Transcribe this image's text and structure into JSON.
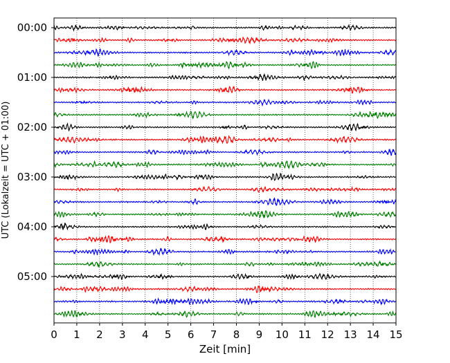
{
  "chart_data": {
    "type": "line",
    "title": "",
    "xlabel": "Zeit  [min]",
    "ylabel": "UTC (Lokalzeit = UTC + 01:00)",
    "xlim": [
      0,
      15
    ],
    "x_ticks": [
      0,
      1,
      2,
      3,
      4,
      5,
      6,
      7,
      8,
      9,
      10,
      11,
      12,
      13,
      14,
      15
    ],
    "y_tick_labels": [
      "00:00",
      "01:00",
      "02:00",
      "03:00",
      "04:00",
      "05:00"
    ],
    "grid": "vertical dotted at each minute",
    "trace_interval_minutes": 15,
    "trace_count": 24,
    "trace_color_cycle": [
      "#000000",
      "#ff0000",
      "#0000ff",
      "#008000"
    ],
    "series": [
      {
        "start": "00:00"
      },
      {
        "start": "00:15"
      },
      {
        "start": "00:30"
      },
      {
        "start": "00:45"
      },
      {
        "start": "01:00"
      },
      {
        "start": "01:15"
      },
      {
        "start": "01:30"
      },
      {
        "start": "01:45"
      },
      {
        "start": "02:00"
      },
      {
        "start": "02:15"
      },
      {
        "start": "02:30"
      },
      {
        "start": "02:45"
      },
      {
        "start": "03:00"
      },
      {
        "start": "03:15"
      },
      {
        "start": "03:30"
      },
      {
        "start": "03:45"
      },
      {
        "start": "04:00"
      },
      {
        "start": "04:15"
      },
      {
        "start": "04:30"
      },
      {
        "start": "04:45"
      },
      {
        "start": "05:00"
      },
      {
        "start": "05:15"
      },
      {
        "start": "05:30"
      },
      {
        "start": "05:45"
      }
    ]
  }
}
